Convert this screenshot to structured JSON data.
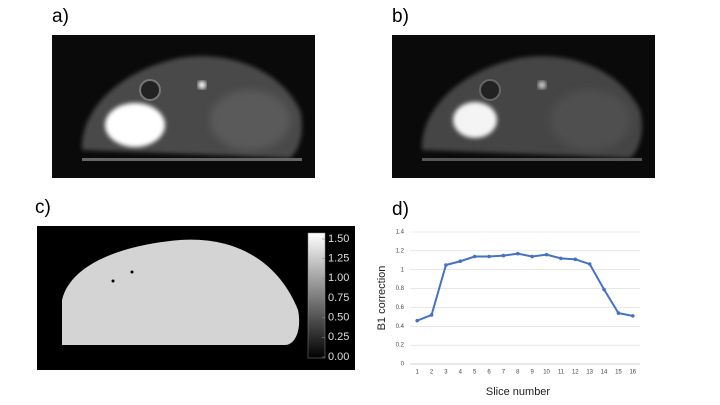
{
  "labels": [
    "a)",
    "b)",
    "c)",
    "d)"
  ],
  "colorbar": {
    "lim": [
      0,
      1.5
    ],
    "ticks": [
      {
        "value": 1.5,
        "label": "1.50"
      },
      {
        "value": 1.25,
        "label": "1.25"
      },
      {
        "value": 1,
        "label": "1.00"
      },
      {
        "value": 0.75,
        "label": "0.75"
      },
      {
        "value": 0.5,
        "label": "0.50"
      },
      {
        "value": 0.25,
        "label": "0.25"
      },
      {
        "value": 0,
        "label": "0.00"
      }
    ]
  },
  "chart_data": {
    "type": "line",
    "xlabel": "Slice number",
    "ylabel": "B1 correction",
    "categories": [
      "1",
      "2",
      "3",
      "4",
      "5",
      "6",
      "7",
      "8",
      "9",
      "10",
      "11",
      "12",
      "13",
      "14",
      "15",
      "16"
    ],
    "values": [
      0.46,
      0.52,
      1.05,
      1.09,
      1.14,
      1.14,
      1.15,
      1.17,
      1.14,
      1.16,
      1.12,
      1.11,
      1.06,
      0.79,
      0.54,
      0.51
    ],
    "color": "#4472c4",
    "ylim": [
      0,
      1.4
    ],
    "yticks": [
      0,
      0.2,
      0.4,
      0.6,
      0.8,
      1,
      1.2,
      1.4
    ],
    "grid": true
  }
}
